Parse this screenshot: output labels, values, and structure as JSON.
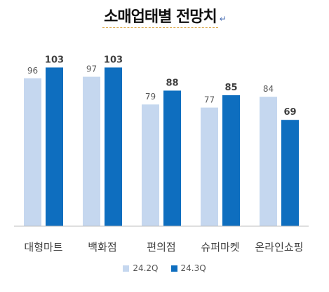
{
  "chart_data": {
    "type": "bar",
    "title": "소매업태별 전망치",
    "categories": [
      "대형마트",
      "백화점",
      "편의점",
      "슈퍼마켓",
      "온라인쇼핑"
    ],
    "series": [
      {
        "name": "24.2Q",
        "values": [
          96,
          97,
          79,
          77,
          84
        ],
        "color": "#c5d7ef"
      },
      {
        "name": "24.3Q",
        "values": [
          103,
          103,
          88,
          85,
          69
        ],
        "color": "#0e6ebf"
      }
    ],
    "ylim": [
      0,
      110
    ],
    "grid": false,
    "legend_position": "bottom"
  },
  "colors": {
    "axis": "#bfbfbf",
    "category_text": "#404040",
    "label_light": "#595959",
    "label_bold": "#404040"
  }
}
